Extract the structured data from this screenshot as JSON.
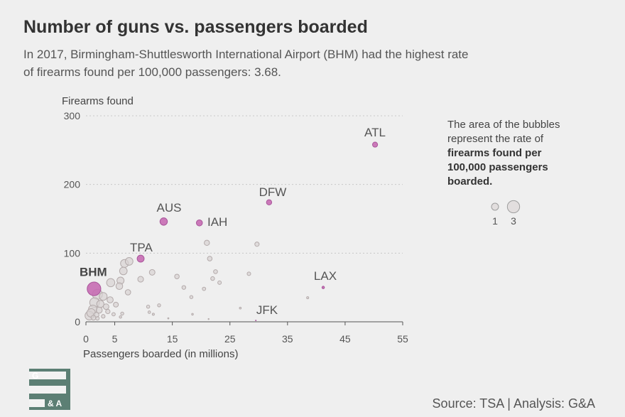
{
  "title": "Number of guns vs. passengers boarded",
  "subtitle": "In 2017, Birmingham-Shuttlesworth International Airport (BHM) had the highest rate of firearms found per 100,000 passengers: 3.68.",
  "legend": {
    "text_1": "The area of the bubbles represent the rate of ",
    "text_bold": "firearms found per 100,000 passengers boarded.",
    "size_values": [
      "1",
      "3"
    ]
  },
  "source": "Source: TSA | Analysis: G&A",
  "logo": {
    "letter_top": "G",
    "letter_bottom": "& A"
  },
  "colors": {
    "highlight": "#c76bb3",
    "highlight_stroke": "#a8559a",
    "other": "#d9d3d3",
    "other_stroke": "#b3aaaa",
    "grid": "#c8c8c8",
    "background": "#efefef",
    "logo": "#5c7f74"
  },
  "chart_data": {
    "type": "scatter",
    "encoding": "bubble",
    "title": "Number of guns vs. passengers boarded",
    "xlabel": "Passengers boarded (in millions)",
    "ylabel": "Firearms found",
    "xlim": [
      0,
      55
    ],
    "ylim": [
      0,
      300
    ],
    "xticks": [
      0,
      5,
      15,
      25,
      35,
      45,
      55
    ],
    "yticks": [
      0,
      100,
      200,
      300
    ],
    "grid": "horizontal dotted",
    "highlighted": [
      {
        "label": "ATL",
        "x": 50.2,
        "y": 258,
        "rate": 0.51
      },
      {
        "label": "DFW",
        "x": 31.8,
        "y": 174,
        "rate": 0.55
      },
      {
        "label": "AUS",
        "x": 13.5,
        "y": 146,
        "rate": 1.08
      },
      {
        "label": "IAH",
        "x": 19.7,
        "y": 144,
        "rate": 0.73
      },
      {
        "label": "TPA",
        "x": 9.5,
        "y": 92,
        "rate": 0.97
      },
      {
        "label": "BHM",
        "x": 1.4,
        "y": 48,
        "rate": 3.68
      },
      {
        "label": "LAX",
        "x": 41.2,
        "y": 50,
        "rate": 0.12
      },
      {
        "label": "JFK",
        "x": 29.5,
        "y": 2,
        "rate": 0.01
      }
    ],
    "others": [
      {
        "x": 21.0,
        "y": 115,
        "rate": 0.55
      },
      {
        "x": 29.7,
        "y": 113,
        "rate": 0.38
      },
      {
        "x": 21.5,
        "y": 92,
        "rate": 0.43
      },
      {
        "x": 7.5,
        "y": 88,
        "rate": 1.17
      },
      {
        "x": 6.7,
        "y": 85,
        "rate": 1.27
      },
      {
        "x": 6.5,
        "y": 74,
        "rate": 1.14
      },
      {
        "x": 11.5,
        "y": 72,
        "rate": 0.63
      },
      {
        "x": 22.5,
        "y": 73,
        "rate": 0.32
      },
      {
        "x": 28.3,
        "y": 70,
        "rate": 0.25
      },
      {
        "x": 15.8,
        "y": 66,
        "rate": 0.42
      },
      {
        "x": 22.0,
        "y": 63,
        "rate": 0.29
      },
      {
        "x": 9.5,
        "y": 62,
        "rate": 0.65
      },
      {
        "x": 6.0,
        "y": 60,
        "rate": 1.0
      },
      {
        "x": 4.3,
        "y": 57,
        "rate": 1.33
      },
      {
        "x": 23.2,
        "y": 57,
        "rate": 0.25
      },
      {
        "x": 5.8,
        "y": 52,
        "rate": 0.9
      },
      {
        "x": 17.0,
        "y": 50,
        "rate": 0.29
      },
      {
        "x": 20.5,
        "y": 48,
        "rate": 0.23
      },
      {
        "x": 7.3,
        "y": 43,
        "rate": 0.59
      },
      {
        "x": 2.0,
        "y": 40,
        "rate": 2.0
      },
      {
        "x": 3.0,
        "y": 37,
        "rate": 1.23
      },
      {
        "x": 18.3,
        "y": 36,
        "rate": 0.2
      },
      {
        "x": 38.5,
        "y": 35,
        "rate": 0.09
      },
      {
        "x": 4.2,
        "y": 32,
        "rate": 0.76
      },
      {
        "x": 1.5,
        "y": 28,
        "rate": 1.87
      },
      {
        "x": 2.5,
        "y": 26,
        "rate": 1.04
      },
      {
        "x": 5.2,
        "y": 25,
        "rate": 0.48
      },
      {
        "x": 12.7,
        "y": 24,
        "rate": 0.19
      },
      {
        "x": 3.5,
        "y": 22,
        "rate": 0.63
      },
      {
        "x": 10.8,
        "y": 22,
        "rate": 0.2
      },
      {
        "x": 26.8,
        "y": 20,
        "rate": 0.07
      },
      {
        "x": 1.2,
        "y": 18,
        "rate": 1.5
      },
      {
        "x": 2.3,
        "y": 17,
        "rate": 0.74
      },
      {
        "x": 3.8,
        "y": 15,
        "rate": 0.39
      },
      {
        "x": 11.0,
        "y": 14,
        "rate": 0.13
      },
      {
        "x": 0.9,
        "y": 13,
        "rate": 1.44
      },
      {
        "x": 6.3,
        "y": 12,
        "rate": 0.19
      },
      {
        "x": 4.8,
        "y": 11,
        "rate": 0.23
      },
      {
        "x": 18.5,
        "y": 11,
        "rate": 0.06
      },
      {
        "x": 11.7,
        "y": 11,
        "rate": 0.09
      },
      {
        "x": 1.8,
        "y": 10,
        "rate": 0.56
      },
      {
        "x": 0.6,
        "y": 9,
        "rate": 1.5
      },
      {
        "x": 3.0,
        "y": 8,
        "rate": 0.27
      },
      {
        "x": 6.0,
        "y": 7,
        "rate": 0.12
      },
      {
        "x": 1.3,
        "y": 6,
        "rate": 0.46
      },
      {
        "x": 14.3,
        "y": 5,
        "rate": 0.03
      },
      {
        "x": 21.3,
        "y": 4,
        "rate": 0.02
      },
      {
        "x": 2.0,
        "y": 5,
        "rate": 0.25
      }
    ]
  }
}
